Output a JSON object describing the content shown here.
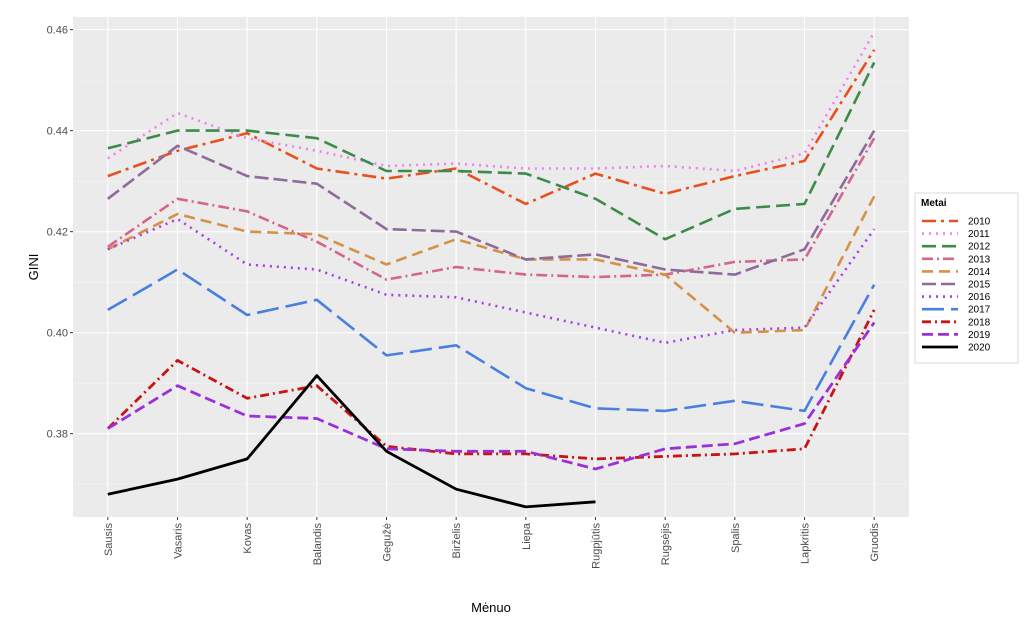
{
  "chart_data": {
    "type": "line",
    "xlabel": "Mėnuo",
    "ylabel": "GINI",
    "categories": [
      "Sausis",
      "Vasaris",
      "Kovas",
      "Balandis",
      "Gegužė",
      "Birželis",
      "Liepa",
      "Rugpjūtis",
      "Rugsėjis",
      "Spalis",
      "Lapkritis",
      "Gruodis"
    ],
    "ylim": [
      0.3635,
      0.4625
    ],
    "yticks": [
      0.38,
      0.4,
      0.42,
      0.44,
      0.46
    ],
    "ytick_labels": [
      "0.38",
      "0.40",
      "0.42",
      "0.44",
      "0.46"
    ],
    "grid": true,
    "legend": {
      "title": "Metai",
      "placement": "right"
    },
    "series": [
      {
        "name": "2010",
        "color": "#e8501e",
        "dash": "14,5,3,5",
        "width": 2.6,
        "values": [
          0.431,
          0.436,
          0.4395,
          0.4325,
          0.4305,
          0.4325,
          0.4255,
          0.4315,
          0.4275,
          0.431,
          0.434,
          0.456
        ]
      },
      {
        "name": "2011",
        "color": "#ee82ee",
        "dash": "2,5",
        "width": 2.6,
        "values": [
          0.4345,
          0.4435,
          0.4385,
          0.436,
          0.433,
          0.4335,
          0.4325,
          0.4325,
          0.433,
          0.432,
          0.4355,
          0.4595
        ]
      },
      {
        "name": "2012",
        "color": "#3d8b4a",
        "dash": "14,6",
        "width": 2.6,
        "values": [
          0.4365,
          0.44,
          0.44,
          0.4385,
          0.432,
          0.432,
          0.4315,
          0.4265,
          0.4185,
          0.4245,
          0.4255,
          0.4535
        ]
      },
      {
        "name": "2013",
        "color": "#d4668e",
        "dash": "11,4,2,4",
        "width": 2.6,
        "values": [
          0.417,
          0.4265,
          0.424,
          0.418,
          0.4105,
          0.413,
          0.4115,
          0.411,
          0.4115,
          0.414,
          0.4145,
          0.4385
        ]
      },
      {
        "name": "2014",
        "color": "#d59145",
        "dash": "11,6",
        "width": 2.6,
        "values": [
          0.4165,
          0.4235,
          0.42,
          0.4195,
          0.4135,
          0.4185,
          0.4145,
          0.4145,
          0.4115,
          0.4,
          0.4005,
          0.427
        ]
      },
      {
        "name": "2015",
        "color": "#8e6b9b",
        "dash": "14,5",
        "width": 2.6,
        "values": [
          0.4265,
          0.437,
          0.431,
          0.4295,
          0.4205,
          0.42,
          0.4145,
          0.4155,
          0.4125,
          0.4115,
          0.4165,
          0.44
        ]
      },
      {
        "name": "2016",
        "color": "#a83ee6",
        "dash": "2,5",
        "width": 2.6,
        "values": [
          0.4165,
          0.4225,
          0.4135,
          0.4125,
          0.4075,
          0.407,
          0.404,
          0.401,
          0.398,
          0.4005,
          0.401,
          0.4205
        ]
      },
      {
        "name": "2017",
        "color": "#4a7fe0",
        "dash": "22,7",
        "width": 2.6,
        "values": [
          0.4045,
          0.4125,
          0.4035,
          0.4065,
          0.3955,
          0.3975,
          0.389,
          0.385,
          0.3845,
          0.3865,
          0.3845,
          0.4095
        ]
      },
      {
        "name": "2018",
        "color": "#c81414",
        "dash": "9,4,2,4",
        "width": 2.8,
        "values": [
          0.381,
          0.3945,
          0.387,
          0.3895,
          0.3775,
          0.376,
          0.376,
          0.375,
          0.3755,
          0.376,
          0.377,
          0.4045
        ]
      },
      {
        "name": "2019",
        "color": "#9b30d9",
        "dash": "11,5",
        "width": 2.8,
        "values": [
          0.381,
          0.3895,
          0.3835,
          0.383,
          0.377,
          0.3765,
          0.3765,
          0.373,
          0.377,
          0.378,
          0.382,
          0.402
        ]
      },
      {
        "name": "2020",
        "color": "#000000",
        "dash": "",
        "width": 2.8,
        "values": [
          0.368,
          0.371,
          0.375,
          0.3915,
          0.3765,
          0.369,
          0.3655,
          0.3665,
          null,
          null,
          null,
          null
        ]
      }
    ]
  }
}
